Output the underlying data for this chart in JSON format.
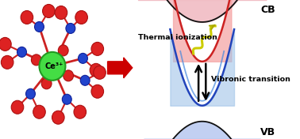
{
  "bg_color": "#ffffff",
  "cb_label": "CB",
  "vb_label": "VB",
  "thermal_label": "Thermal ionization",
  "vibronic_label": "Vibronic transition",
  "ce_label": "Ce³⁺",
  "cb_fill": "#f0b8c0",
  "vb_fill": "#b8c8f0",
  "red_parabola_color": "#cc2222",
  "red_parabola_fill": "#f5b0b0",
  "blue_parabola_color": "#2244bb",
  "blue_parabola_fill": "#a8cce8",
  "cb_curve_color": "#222222",
  "vb_curve_color": "#222222",
  "wave_color": "#cccc00",
  "arrow_red": "#cc0000",
  "text_color": "#000000"
}
